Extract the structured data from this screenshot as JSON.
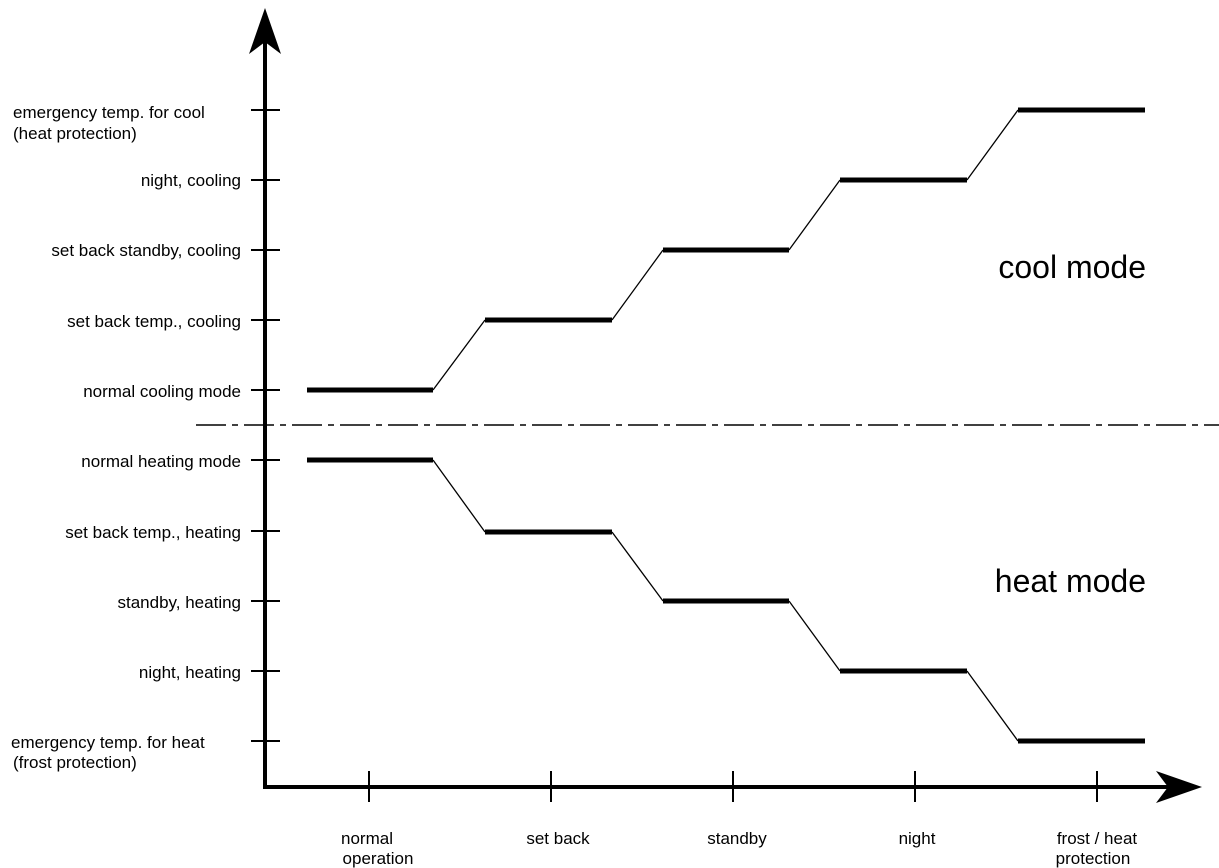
{
  "y_levels": [
    {
      "id": "emergency-cool",
      "lines": [
        "emergency temp. for cool",
        "(heat protection)"
      ]
    },
    {
      "id": "night-cooling",
      "lines": [
        "night, cooling"
      ]
    },
    {
      "id": "standby-cooling",
      "lines": [
        "set back standby, cooling"
      ]
    },
    {
      "id": "setback-cooling",
      "lines": [
        "set back temp., cooling"
      ]
    },
    {
      "id": "normal-cooling",
      "lines": [
        "normal cooling mode"
      ]
    },
    {
      "id": "normal-heating",
      "lines": [
        "normal heating mode"
      ]
    },
    {
      "id": "setback-heating",
      "lines": [
        "set back temp., heating"
      ]
    },
    {
      "id": "standby-heating",
      "lines": [
        "standby, heating"
      ]
    },
    {
      "id": "night-heating",
      "lines": [
        "night, heating"
      ]
    },
    {
      "id": "emergency-heat",
      "lines": [
        "emergency temp. for heat",
        "(frost protection)"
      ]
    }
  ],
  "x_categories": [
    {
      "id": "normal-operation",
      "lines": [
        "normal",
        "operation"
      ]
    },
    {
      "id": "set-back",
      "lines": [
        "set back"
      ]
    },
    {
      "id": "standby",
      "lines": [
        "standby"
      ]
    },
    {
      "id": "night",
      "lines": [
        "night"
      ]
    },
    {
      "id": "frost-heat-protection",
      "lines": [
        "frost / heat",
        "protection"
      ]
    }
  ],
  "modes": {
    "cool": "cool mode",
    "heat": "heat mode"
  },
  "cool_steps": [
    "normal cooling mode",
    "set back temp., cooling",
    "set back standby, cooling",
    "night, cooling",
    "emergency temp. for cool"
  ],
  "heat_steps": [
    "normal heating mode",
    "set back temp., heating",
    "standby, heating",
    "night, heating",
    "emergency temp. for heat"
  ]
}
